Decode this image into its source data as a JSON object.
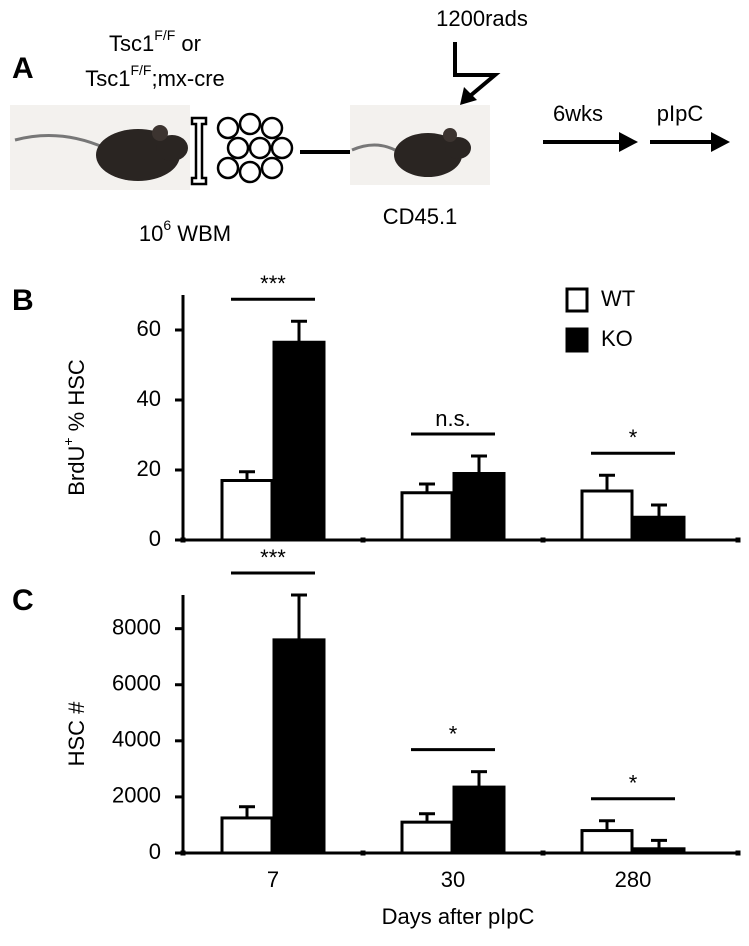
{
  "panel_labels": [
    "A",
    "B",
    "C"
  ],
  "schematic": {
    "donor_line1": [
      "Tsc1",
      "F/F",
      " or"
    ],
    "donor_line2": [
      "Tsc1",
      "F/F",
      ";mx-cre"
    ],
    "cells": [
      "10",
      "6",
      " WBM"
    ],
    "radiation": "1200rads",
    "recipient": "CD45.1",
    "step1": "6wks",
    "step2": "pIpC"
  },
  "chart_data": [
    {
      "type": "bar",
      "ylabel": [
        "BrdU",
        "+",
        " % HSC"
      ],
      "categories": [
        null,
        null,
        null
      ],
      "series": [
        {
          "name": "WT",
          "color": "#ffffff",
          "values": [
            17,
            13.5,
            14
          ],
          "errors": [
            2.5,
            2.5,
            4.5
          ]
        },
        {
          "name": "KO",
          "color": "#000000",
          "values": [
            56.5,
            19,
            6.5
          ],
          "errors": [
            6,
            5,
            3.5
          ]
        }
      ],
      "ylim": [
        0,
        70
      ],
      "yticks": [
        0,
        20,
        40,
        60
      ],
      "annotations": [
        "***",
        "n.s.",
        "*"
      ],
      "legend": "upper right"
    },
    {
      "type": "bar",
      "ylabel": [
        "HSC #"
      ],
      "xlabel": "Days after pIpC",
      "categories": [
        "7",
        "30",
        "280"
      ],
      "series": [
        {
          "name": "WT",
          "color": "#ffffff",
          "values": [
            1250,
            1100,
            800
          ],
          "errors": [
            400,
            300,
            350
          ]
        },
        {
          "name": "KO",
          "color": "#000000",
          "values": [
            7600,
            2350,
            150
          ],
          "errors": [
            1600,
            550,
            300
          ]
        }
      ],
      "ylim": [
        0,
        9200
      ],
      "yticks": [
        0,
        2000,
        4000,
        6000,
        8000
      ],
      "annotations": [
        "***",
        "*",
        "*"
      ]
    }
  ]
}
